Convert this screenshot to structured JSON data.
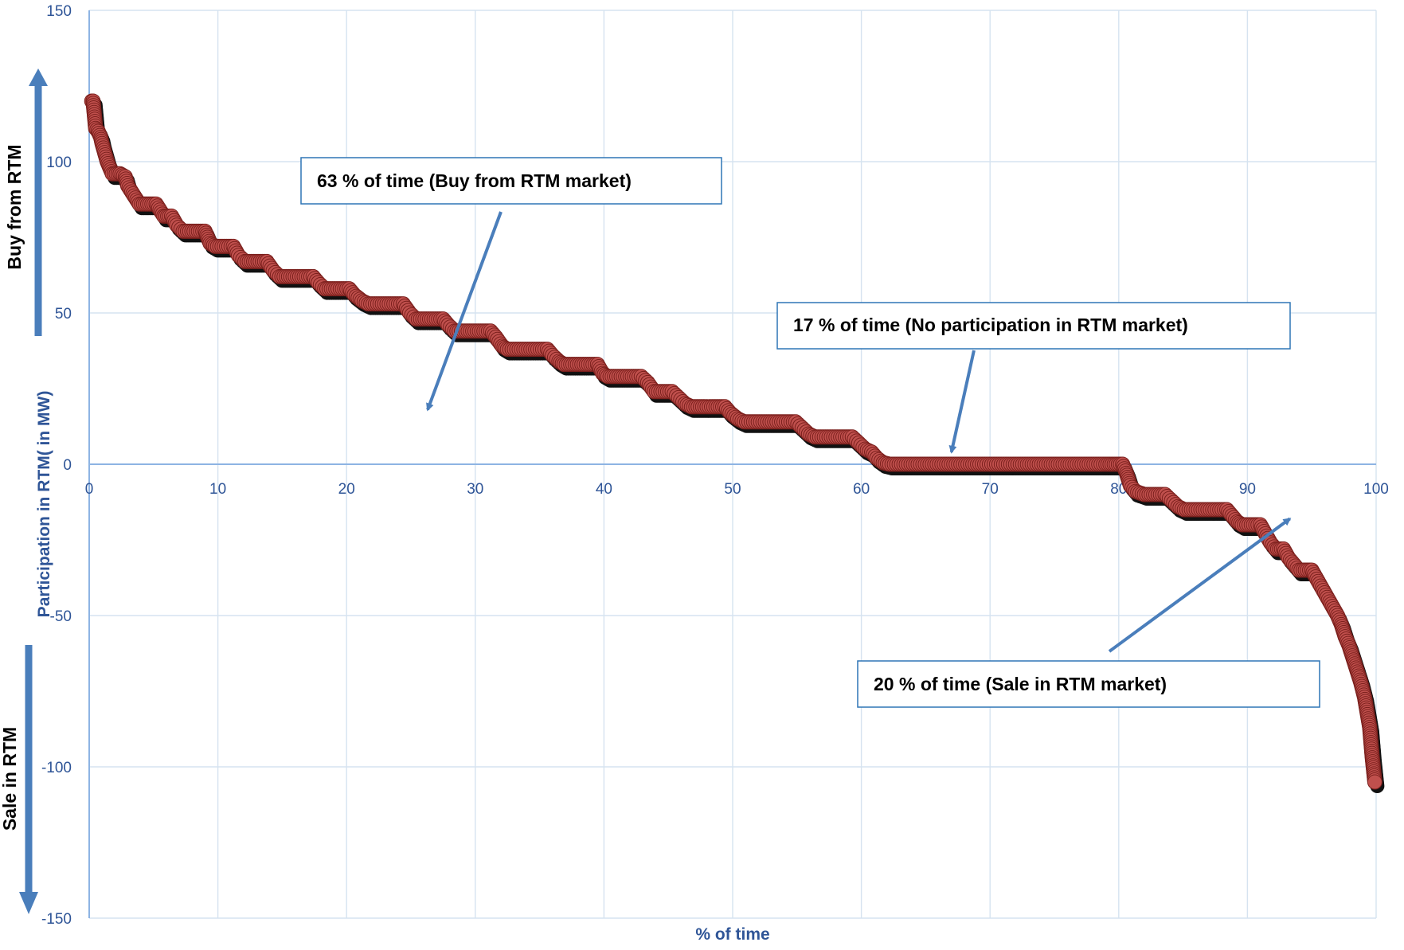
{
  "colors": {
    "grid": "#d6e3f0",
    "axis": "#8eb4e3",
    "tick_text": "#2f5597",
    "marker_fill": "#c0504d",
    "marker_edge": "#7a1f1c",
    "shadow": "#111111",
    "arrow": "#4a7ebb",
    "box_border": "#2e75b6"
  },
  "chart_data": {
    "type": "scatter",
    "title": "",
    "xlabel": "% of time",
    "ylabel": "Participation in RTM( in MW)",
    "xlim": [
      0,
      100
    ],
    "ylim": [
      -150,
      150
    ],
    "xticks": [
      0,
      10,
      20,
      30,
      40,
      50,
      60,
      70,
      80,
      90,
      100
    ],
    "yticks": [
      -150,
      -100,
      -50,
      0,
      50,
      100,
      150
    ],
    "grid": true,
    "series": [
      {
        "values": [
          [
            0.2,
            120
          ],
          [
            0.3,
            120
          ],
          [
            0.5,
            111
          ],
          [
            0.7,
            110
          ],
          [
            0.9,
            108
          ],
          [
            1.0,
            106
          ],
          [
            1.2,
            103
          ],
          [
            1.4,
            100
          ],
          [
            1.6,
            98
          ],
          [
            1.8,
            96
          ],
          [
            2.4,
            96
          ],
          [
            2.8,
            95
          ],
          [
            3.0,
            92
          ],
          [
            3.3,
            90
          ],
          [
            3.6,
            88
          ],
          [
            3.9,
            86
          ],
          [
            5.2,
            86
          ],
          [
            5.5,
            84
          ],
          [
            5.8,
            82
          ],
          [
            6.4,
            82
          ],
          [
            6.8,
            79
          ],
          [
            7.3,
            77
          ],
          [
            9.0,
            77
          ],
          [
            9.4,
            73
          ],
          [
            9.8,
            72
          ],
          [
            11.2,
            72
          ],
          [
            11.6,
            69
          ],
          [
            12.1,
            67
          ],
          [
            13.8,
            67
          ],
          [
            14.3,
            64
          ],
          [
            14.8,
            62
          ],
          [
            17.4,
            62
          ],
          [
            17.8,
            60
          ],
          [
            18.3,
            58
          ],
          [
            20.2,
            58
          ],
          [
            20.6,
            56
          ],
          [
            21.2,
            54
          ],
          [
            21.7,
            53
          ],
          [
            24.4,
            53
          ],
          [
            24.9,
            50
          ],
          [
            25.4,
            48
          ],
          [
            27.5,
            48
          ],
          [
            27.9,
            46
          ],
          [
            28.4,
            44
          ],
          [
            31.2,
            44
          ],
          [
            31.6,
            42
          ],
          [
            32.1,
            39
          ],
          [
            32.5,
            38
          ],
          [
            35.6,
            38
          ],
          [
            36.0,
            36
          ],
          [
            36.5,
            34
          ],
          [
            36.9,
            33
          ],
          [
            39.5,
            33
          ],
          [
            39.9,
            30
          ],
          [
            40.3,
            29
          ],
          [
            42.9,
            29
          ],
          [
            43.4,
            27
          ],
          [
            43.9,
            24
          ],
          [
            45.3,
            24
          ],
          [
            45.8,
            22
          ],
          [
            46.3,
            20
          ],
          [
            46.8,
            19
          ],
          [
            49.4,
            19
          ],
          [
            49.8,
            17
          ],
          [
            50.4,
            15
          ],
          [
            50.9,
            14
          ],
          [
            54.9,
            14
          ],
          [
            55.4,
            12
          ],
          [
            55.9,
            10
          ],
          [
            56.4,
            9
          ],
          [
            59.3,
            9
          ],
          [
            59.8,
            7
          ],
          [
            60.3,
            5
          ],
          [
            60.8,
            4
          ],
          [
            61.2,
            2
          ],
          [
            61.7,
            0.5
          ],
          [
            62.2,
            0
          ],
          [
            64.6,
            0
          ],
          [
            67.0,
            0
          ],
          [
            69.4,
            0
          ],
          [
            71.8,
            0
          ],
          [
            74.2,
            0
          ],
          [
            76.6,
            0
          ],
          [
            79.0,
            0
          ],
          [
            80.3,
            0
          ],
          [
            80.6,
            -3
          ],
          [
            80.9,
            -7
          ],
          [
            81.3,
            -9
          ],
          [
            82.0,
            -10
          ],
          [
            83.6,
            -10
          ],
          [
            84.1,
            -12
          ],
          [
            84.6,
            -14
          ],
          [
            85.1,
            -15
          ],
          [
            88.4,
            -15
          ],
          [
            88.8,
            -17
          ],
          [
            89.2,
            -19
          ],
          [
            89.6,
            -20
          ],
          [
            91.0,
            -20
          ],
          [
            91.4,
            -23
          ],
          [
            91.8,
            -26
          ],
          [
            92.2,
            -28
          ],
          [
            92.8,
            -28
          ],
          [
            93.2,
            -31
          ],
          [
            93.6,
            -33
          ],
          [
            94.0,
            -35
          ],
          [
            95.0,
            -35
          ],
          [
            95.4,
            -38
          ],
          [
            95.8,
            -41
          ],
          [
            96.2,
            -44
          ],
          [
            96.6,
            -47
          ],
          [
            97.0,
            -50
          ],
          [
            97.3,
            -53
          ],
          [
            97.6,
            -57
          ],
          [
            97.9,
            -60
          ],
          [
            98.2,
            -64
          ],
          [
            98.5,
            -68
          ],
          [
            98.8,
            -72
          ],
          [
            99.1,
            -77
          ],
          [
            99.3,
            -82
          ],
          [
            99.5,
            -87
          ],
          [
            99.6,
            -92
          ],
          [
            99.7,
            -97
          ],
          [
            99.8,
            -101
          ],
          [
            99.9,
            -105
          ]
        ]
      }
    ],
    "side_labels": {
      "buy": "Buy from RTM",
      "sale": "Sale in RTM"
    },
    "annotations": [
      {
        "text": "63 % of time (Buy from RTM market)",
        "arrow_to": [
          26.3,
          18
        ]
      },
      {
        "text": "17 % of time (No participation in RTM market)",
        "arrow_to": [
          67.0,
          4
        ]
      },
      {
        "text": "20 % of time (Sale in RTM market)",
        "arrow_to": [
          93.3,
          -18
        ]
      }
    ]
  }
}
